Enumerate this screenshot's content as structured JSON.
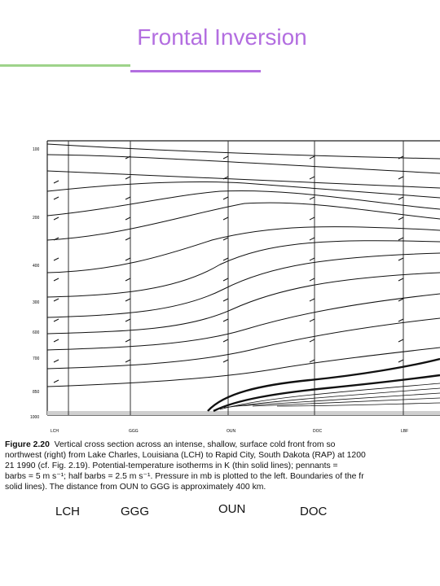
{
  "slide": {
    "title": "Frontal Inversion"
  },
  "figure": {
    "pressure_labels": [
      "100",
      "200",
      "400",
      "300",
      "600",
      "700",
      "850",
      "1000"
    ],
    "station_ticks": [
      "LCH",
      "GGG",
      "OUN",
      "DOC",
      "LBF"
    ],
    "caption_label": "Figure 2.20",
    "caption_lines": [
      "Vertical cross section across an intense, shallow, surface cold front from so",
      "northwest (right) from Lake Charles, Louisiana (LCH) to Rapid City, South Dakota (RAP) at 1200",
      "21 1990 (cf. Fig. 2.19). Potential-temperature isotherms in K (thin solid lines); pennants =",
      "barbs = 5 m s⁻¹; half barbs = 2.5 m s⁻¹. Pressure in mb is plotted to the left. Boundaries of the fr",
      "solid lines). The distance from OUN to GGG is approximately 400 km."
    ]
  },
  "stations": {
    "lch": "LCH",
    "ggg": "GGG",
    "oun": "OUN",
    "doc": "DOC"
  },
  "colors": {
    "title": "#b36ee0",
    "rule_green": "#9ed38a",
    "rule_purple": "#b36ee0"
  }
}
